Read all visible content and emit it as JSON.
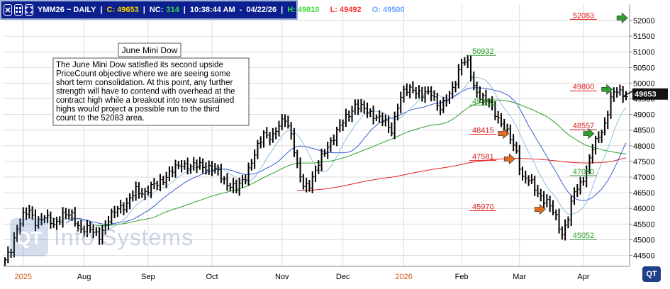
{
  "header": {
    "symbol": "YMM26 ~ DAILY",
    "close": "C: 49653",
    "net_change_label": "NC:",
    "net_change": "314",
    "time": "10:38:44 AM",
    "date": "04/22/26",
    "high": "H: 49810",
    "low": "L: 49492",
    "open": "O: 49500"
  },
  "watermark": {
    "text": "Info Systems"
  },
  "logo": {
    "text": "QT"
  },
  "chart_data": {
    "type": "candlestick",
    "title": "June Mini Dow",
    "annotation": "The June Mini Dow satisfied its second upside PriceCount objective where we are seeing some short term consolidation.  At this point, any further strength will have to contend with overhead at the contract high while a breakout into new sustained highs would project a possible run to the third count to the 52083 area.",
    "annotation_lines": [
      "The June Mini Dow satisfied its second upside",
      "PriceCount objective where we are seeing some",
      "short term consolidation.  At this point, any further",
      "strength will have to contend with overhead at the",
      "contract high while a breakout into new sustained",
      "highs would project a possible run to the third",
      "count to the 52083 area."
    ],
    "x_labels": [
      {
        "label": "2025",
        "bar": 6
      },
      {
        "label": "Aug",
        "bar": 26
      },
      {
        "label": "Sep",
        "bar": 47
      },
      {
        "label": "Oct",
        "bar": 68
      },
      {
        "label": "Nov",
        "bar": 91
      },
      {
        "label": "Dec",
        "bar": 111
      },
      {
        "label": "2026",
        "bar": 131
      },
      {
        "label": "Feb",
        "bar": 150
      },
      {
        "label": "Mar",
        "bar": 169
      },
      {
        "label": "Apr",
        "bar": 190
      }
    ],
    "y_ticks": [
      44500,
      45000,
      45500,
      46000,
      46500,
      47000,
      47500,
      48000,
      48500,
      49000,
      49500,
      50000,
      50500,
      51000,
      51500,
      52000
    ],
    "ylim": [
      44150,
      52520
    ],
    "bar_count": 205,
    "current_price": "49653",
    "levels": [
      {
        "label": "52083",
        "value": 52083,
        "color": "#e02020",
        "bar": 186
      },
      {
        "label": "50932",
        "value": 50932,
        "color": "#2ca02c",
        "bar": 153
      },
      {
        "label": "49800",
        "value": 49800,
        "color": "#e02020",
        "bar": 186
      },
      {
        "label": "49346",
        "value": 49346,
        "color": "#2ca02c",
        "bar": 153
      },
      {
        "label": "48557",
        "value": 48557,
        "color": "#e02020",
        "bar": 186
      },
      {
        "label": "48415",
        "value": 48415,
        "color": "#e02020",
        "bar": 153
      },
      {
        "label": "47581",
        "value": 47581,
        "color": "#e02020",
        "bar": 153
      },
      {
        "label": "47090",
        "value": 47090,
        "color": "#2ca02c",
        "bar": 186
      },
      {
        "label": "45970",
        "value": 45970,
        "color": "#e02020",
        "bar": 153
      },
      {
        "label": "45052",
        "value": 45052,
        "color": "#2ca02c",
        "bar": 186
      }
    ],
    "arrows": [
      {
        "color": "#2ca02c",
        "value": 52083,
        "bar": 201
      },
      {
        "color": "#2ca02c",
        "value": 49800,
        "bar": 196
      },
      {
        "color": "#2ca02c",
        "value": 48390,
        "bar": 190
      },
      {
        "color": "#e07020",
        "value": 48390,
        "bar": 162
      },
      {
        "color": "#e07020",
        "value": 47581,
        "bar": 164
      },
      {
        "color": "#e07020",
        "value": 45970,
        "bar": 174
      }
    ],
    "anchors": [
      [
        0,
        44300
      ],
      [
        2,
        44700
      ],
      [
        4,
        45400
      ],
      [
        6,
        45750
      ],
      [
        8,
        45900
      ],
      [
        10,
        45600
      ],
      [
        13,
        45700
      ],
      [
        16,
        45500
      ],
      [
        19,
        45800
      ],
      [
        22,
        45750
      ],
      [
        25,
        45350
      ],
      [
        28,
        45300
      ],
      [
        31,
        45150
      ],
      [
        34,
        45600
      ],
      [
        37,
        46050
      ],
      [
        40,
        46100
      ],
      [
        43,
        46600
      ],
      [
        46,
        46500
      ],
      [
        50,
        46800
      ],
      [
        54,
        47100
      ],
      [
        58,
        47450
      ],
      [
        61,
        47300
      ],
      [
        64,
        47400
      ],
      [
        67,
        47300
      ],
      [
        70,
        47150
      ],
      [
        73,
        46800
      ],
      [
        76,
        46600
      ],
      [
        79,
        47050
      ],
      [
        82,
        47700
      ],
      [
        85,
        48400
      ],
      [
        88,
        48300
      ],
      [
        90,
        48600
      ],
      [
        92,
        48900
      ],
      [
        94,
        48400
      ],
      [
        96,
        47300
      ],
      [
        98,
        46700
      ],
      [
        100,
        46800
      ],
      [
        102,
        47200
      ],
      [
        104,
        47600
      ],
      [
        106,
        48000
      ],
      [
        108,
        48300
      ],
      [
        110,
        48600
      ],
      [
        112,
        48900
      ],
      [
        115,
        49300
      ],
      [
        118,
        49150
      ],
      [
        121,
        49000
      ],
      [
        124,
        48800
      ],
      [
        127,
        48500
      ],
      [
        129,
        49300
      ],
      [
        131,
        49700
      ],
      [
        134,
        49850
      ],
      [
        137,
        49600
      ],
      [
        140,
        49700
      ],
      [
        143,
        49200
      ],
      [
        146,
        49600
      ],
      [
        148,
        50100
      ],
      [
        150,
        50700
      ],
      [
        152,
        50600
      ],
      [
        154,
        49900
      ],
      [
        156,
        49600
      ],
      [
        159,
        49350
      ],
      [
        162,
        48900
      ],
      [
        165,
        48400
      ],
      [
        168,
        47800
      ],
      [
        170,
        47000
      ],
      [
        172,
        46900
      ],
      [
        175,
        46500
      ],
      [
        178,
        46200
      ],
      [
        181,
        45700
      ],
      [
        183,
        45200
      ],
      [
        185,
        45700
      ],
      [
        187,
        46500
      ],
      [
        189,
        46800
      ],
      [
        191,
        47200
      ],
      [
        193,
        47900
      ],
      [
        195,
        48300
      ],
      [
        197,
        48700
      ],
      [
        199,
        49500
      ],
      [
        201,
        49750
      ],
      [
        203,
        49653
      ]
    ],
    "moving_averages": [
      {
        "color": "#e02020",
        "period": 200,
        "start_bar": 96
      },
      {
        "color": "#2ca02c",
        "period": 50,
        "start_bar": 30
      },
      {
        "color": "#3a5bd0",
        "period": 20,
        "start_bar": 20
      },
      {
        "color": "#8fc0e0",
        "period": 10,
        "start_bar": 12
      }
    ]
  }
}
